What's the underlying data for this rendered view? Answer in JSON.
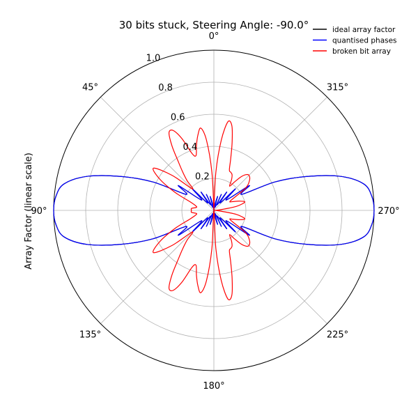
{
  "chart_data": {
    "type": "line",
    "title": "30 bits stuck, Steering Angle: -90.0°",
    "ylabel": "Array Factor (linear scale)",
    "theta_zero_location": "top",
    "theta_direction": "counterclockwise",
    "angle_tick_labels": [
      "0°",
      "45°",
      "90°",
      "135°",
      "180°",
      "225°",
      "270°",
      "315°"
    ],
    "radial_tick_labels": [
      "0.2",
      "0.4",
      "0.6",
      "0.8",
      "1.0"
    ],
    "radial_ticks": [
      0.2,
      0.4,
      0.6,
      0.8,
      1.0
    ],
    "rlim": [
      0,
      1.0
    ],
    "grid": true,
    "legend_position": "top-right",
    "series": [
      {
        "name": "ideal array factor",
        "color": "#000000",
        "theta_deg": [
          0,
          5,
          10,
          15,
          20,
          25,
          30,
          35,
          40,
          45,
          50,
          55,
          60,
          65,
          70,
          75,
          80,
          85,
          90,
          95,
          100,
          105,
          110,
          115,
          120,
          125,
          130,
          135,
          140,
          145,
          150,
          155,
          160,
          165,
          170,
          175,
          180,
          185,
          190,
          195,
          200,
          205,
          210,
          215,
          220,
          225,
          230,
          235,
          240,
          245,
          250,
          255,
          260,
          265,
          270,
          275,
          280,
          285,
          290,
          295,
          300,
          305,
          310,
          315,
          320,
          325,
          330,
          335,
          340,
          345,
          350,
          355,
          360
        ],
        "r": [
          0.0,
          0.02,
          0.04,
          0.09,
          0.02,
          0.11,
          0.04,
          0.14,
          0.06,
          0.19,
          0.1,
          0.27,
          0.2,
          0.42,
          0.62,
          0.82,
          0.95,
          0.99,
          1.0,
          0.99,
          0.95,
          0.82,
          0.62,
          0.42,
          0.2,
          0.27,
          0.1,
          0.19,
          0.06,
          0.14,
          0.04,
          0.11,
          0.02,
          0.09,
          0.04,
          0.02,
          0.0,
          0.02,
          0.04,
          0.09,
          0.02,
          0.11,
          0.04,
          0.14,
          0.06,
          0.19,
          0.1,
          0.27,
          0.2,
          0.42,
          0.62,
          0.82,
          0.95,
          0.99,
          1.0,
          0.99,
          0.95,
          0.82,
          0.62,
          0.42,
          0.2,
          0.27,
          0.1,
          0.19,
          0.06,
          0.14,
          0.04,
          0.11,
          0.02,
          0.09,
          0.04,
          0.02,
          0.0
        ]
      },
      {
        "name": "quantised phases",
        "color": "#0000ff",
        "theta_deg": [
          0,
          5,
          10,
          15,
          20,
          25,
          30,
          35,
          40,
          45,
          50,
          55,
          60,
          65,
          70,
          75,
          80,
          85,
          90,
          95,
          100,
          105,
          110,
          115,
          120,
          125,
          130,
          135,
          140,
          145,
          150,
          155,
          160,
          165,
          170,
          175,
          180,
          185,
          190,
          195,
          200,
          205,
          210,
          215,
          220,
          225,
          230,
          235,
          240,
          245,
          250,
          255,
          260,
          265,
          270,
          275,
          280,
          285,
          290,
          295,
          300,
          305,
          310,
          315,
          320,
          325,
          330,
          335,
          340,
          345,
          350,
          355,
          360
        ],
        "r": [
          0.0,
          0.02,
          0.04,
          0.09,
          0.02,
          0.11,
          0.04,
          0.14,
          0.06,
          0.19,
          0.1,
          0.27,
          0.2,
          0.42,
          0.62,
          0.82,
          0.95,
          0.99,
          1.0,
          0.99,
          0.95,
          0.82,
          0.62,
          0.42,
          0.2,
          0.27,
          0.1,
          0.19,
          0.06,
          0.14,
          0.04,
          0.11,
          0.02,
          0.09,
          0.04,
          0.02,
          0.0,
          0.02,
          0.04,
          0.09,
          0.02,
          0.11,
          0.04,
          0.14,
          0.06,
          0.19,
          0.1,
          0.27,
          0.2,
          0.42,
          0.62,
          0.82,
          0.95,
          0.99,
          1.0,
          0.99,
          0.95,
          0.82,
          0.62,
          0.42,
          0.2,
          0.27,
          0.1,
          0.19,
          0.06,
          0.14,
          0.04,
          0.11,
          0.02,
          0.09,
          0.04,
          0.02,
          0.0
        ]
      },
      {
        "name": "broken bit array",
        "color": "#ff0000",
        "theta_deg": [
          0,
          3,
          6,
          9,
          12,
          15,
          18,
          21,
          24,
          27,
          30,
          33,
          36,
          39,
          42,
          45,
          50,
          55,
          60,
          65,
          70,
          75,
          80,
          85,
          90,
          95,
          100,
          105,
          110,
          115,
          120,
          125,
          130,
          135,
          138,
          141,
          144,
          147,
          150,
          153,
          156,
          159,
          162,
          165,
          168,
          171,
          174,
          177,
          180,
          183,
          186,
          189,
          192,
          195,
          198,
          201,
          204,
          207,
          210,
          213,
          216,
          219,
          222,
          225,
          230,
          235,
          240,
          245,
          250,
          255,
          260,
          265,
          270,
          275,
          280,
          285,
          290,
          295,
          300,
          305,
          310,
          315,
          318,
          321,
          324,
          327,
          330,
          333,
          336,
          339,
          342,
          345,
          348,
          351,
          354,
          357,
          360
        ],
        "r": [
          0.0,
          0.24,
          0.44,
          0.52,
          0.48,
          0.42,
          0.36,
          0.38,
          0.49,
          0.56,
          0.56,
          0.48,
          0.38,
          0.31,
          0.25,
          0.19,
          0.34,
          0.46,
          0.39,
          0.27,
          0.16,
          0.12,
          0.11,
          0.14,
          0.14,
          0.14,
          0.11,
          0.12,
          0.16,
          0.27,
          0.39,
          0.46,
          0.34,
          0.19,
          0.25,
          0.31,
          0.38,
          0.48,
          0.56,
          0.56,
          0.49,
          0.38,
          0.36,
          0.42,
          0.48,
          0.52,
          0.44,
          0.24,
          0.0,
          0.24,
          0.44,
          0.56,
          0.54,
          0.44,
          0.34,
          0.27,
          0.26,
          0.25,
          0.22,
          0.18,
          0.22,
          0.27,
          0.3,
          0.31,
          0.29,
          0.24,
          0.12,
          0.13,
          0.17,
          0.2,
          0.14,
          0.03,
          0.0,
          0.03,
          0.14,
          0.2,
          0.17,
          0.13,
          0.12,
          0.24,
          0.29,
          0.31,
          0.3,
          0.27,
          0.22,
          0.18,
          0.22,
          0.25,
          0.26,
          0.27,
          0.34,
          0.44,
          0.54,
          0.56,
          0.44,
          0.24,
          0.0
        ]
      }
    ]
  }
}
